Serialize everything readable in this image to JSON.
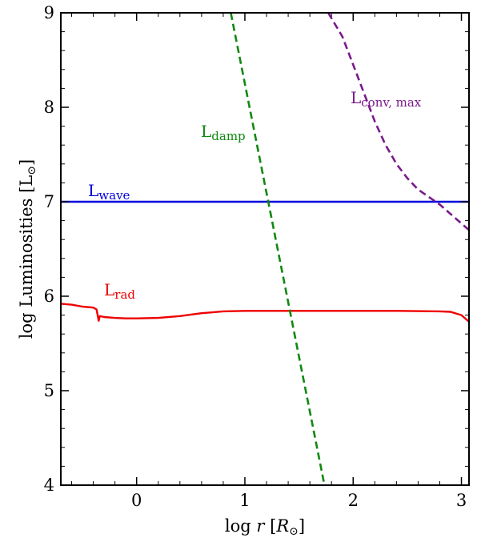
{
  "chart_data": {
    "type": "line",
    "xlabel": {
      "prefix": "log ",
      "var": "r",
      "open": " [",
      "unit": "R",
      "sub": "⊙",
      "close": "]"
    },
    "ylabel": {
      "text": "log Luminosities [L",
      "sub": "⊙",
      "close": "]"
    },
    "xlim": [
      -0.7,
      3.07
    ],
    "ylim": [
      4,
      9
    ],
    "xticks": [
      0,
      1,
      2,
      3
    ],
    "yticks": [
      4,
      5,
      6,
      7,
      8,
      9
    ],
    "grid": false,
    "colors": {
      "L_wave": "#0000dd",
      "L_rad": "#ee0000",
      "L_damp": "#118811",
      "L_conv_max": "#7a1a8c"
    },
    "series": [
      {
        "id": "L_wave",
        "label_main": "L",
        "label_sub": "wave",
        "style": "solid",
        "x": [
          -0.7,
          3.07
        ],
        "y": [
          7.0,
          7.0
        ]
      },
      {
        "id": "L_rad",
        "label_main": "L",
        "label_sub": "rad",
        "style": "solid",
        "x": [
          -0.7,
          -0.6,
          -0.5,
          -0.4,
          -0.37,
          -0.36,
          -0.35,
          -0.34,
          -0.3,
          -0.2,
          -0.1,
          0.0,
          0.2,
          0.4,
          0.6,
          0.8,
          1.0,
          1.3,
          1.6,
          2.0,
          2.4,
          2.8,
          2.9,
          3.0,
          3.07
        ],
        "y": [
          5.92,
          5.91,
          5.89,
          5.88,
          5.86,
          5.8,
          5.74,
          5.79,
          5.78,
          5.77,
          5.765,
          5.765,
          5.77,
          5.79,
          5.82,
          5.84,
          5.845,
          5.845,
          5.845,
          5.845,
          5.845,
          5.84,
          5.835,
          5.8,
          5.73
        ]
      },
      {
        "id": "L_damp",
        "label_main": "L",
        "label_sub": "damp",
        "style": "dashed",
        "x": [
          0.87,
          1.735
        ],
        "y": [
          9.0,
          4.0
        ]
      },
      {
        "id": "L_conv_max",
        "label_main": "L",
        "label_sub": "conv, max",
        "style": "dashed",
        "x": [
          1.77,
          1.9,
          2.0,
          2.1,
          2.2,
          2.3,
          2.4,
          2.5,
          2.6,
          2.7,
          2.8,
          2.9,
          3.0,
          3.07
        ],
        "y": [
          9.0,
          8.75,
          8.45,
          8.15,
          7.85,
          7.6,
          7.4,
          7.25,
          7.13,
          7.05,
          6.97,
          6.87,
          6.77,
          6.7
        ]
      }
    ]
  }
}
